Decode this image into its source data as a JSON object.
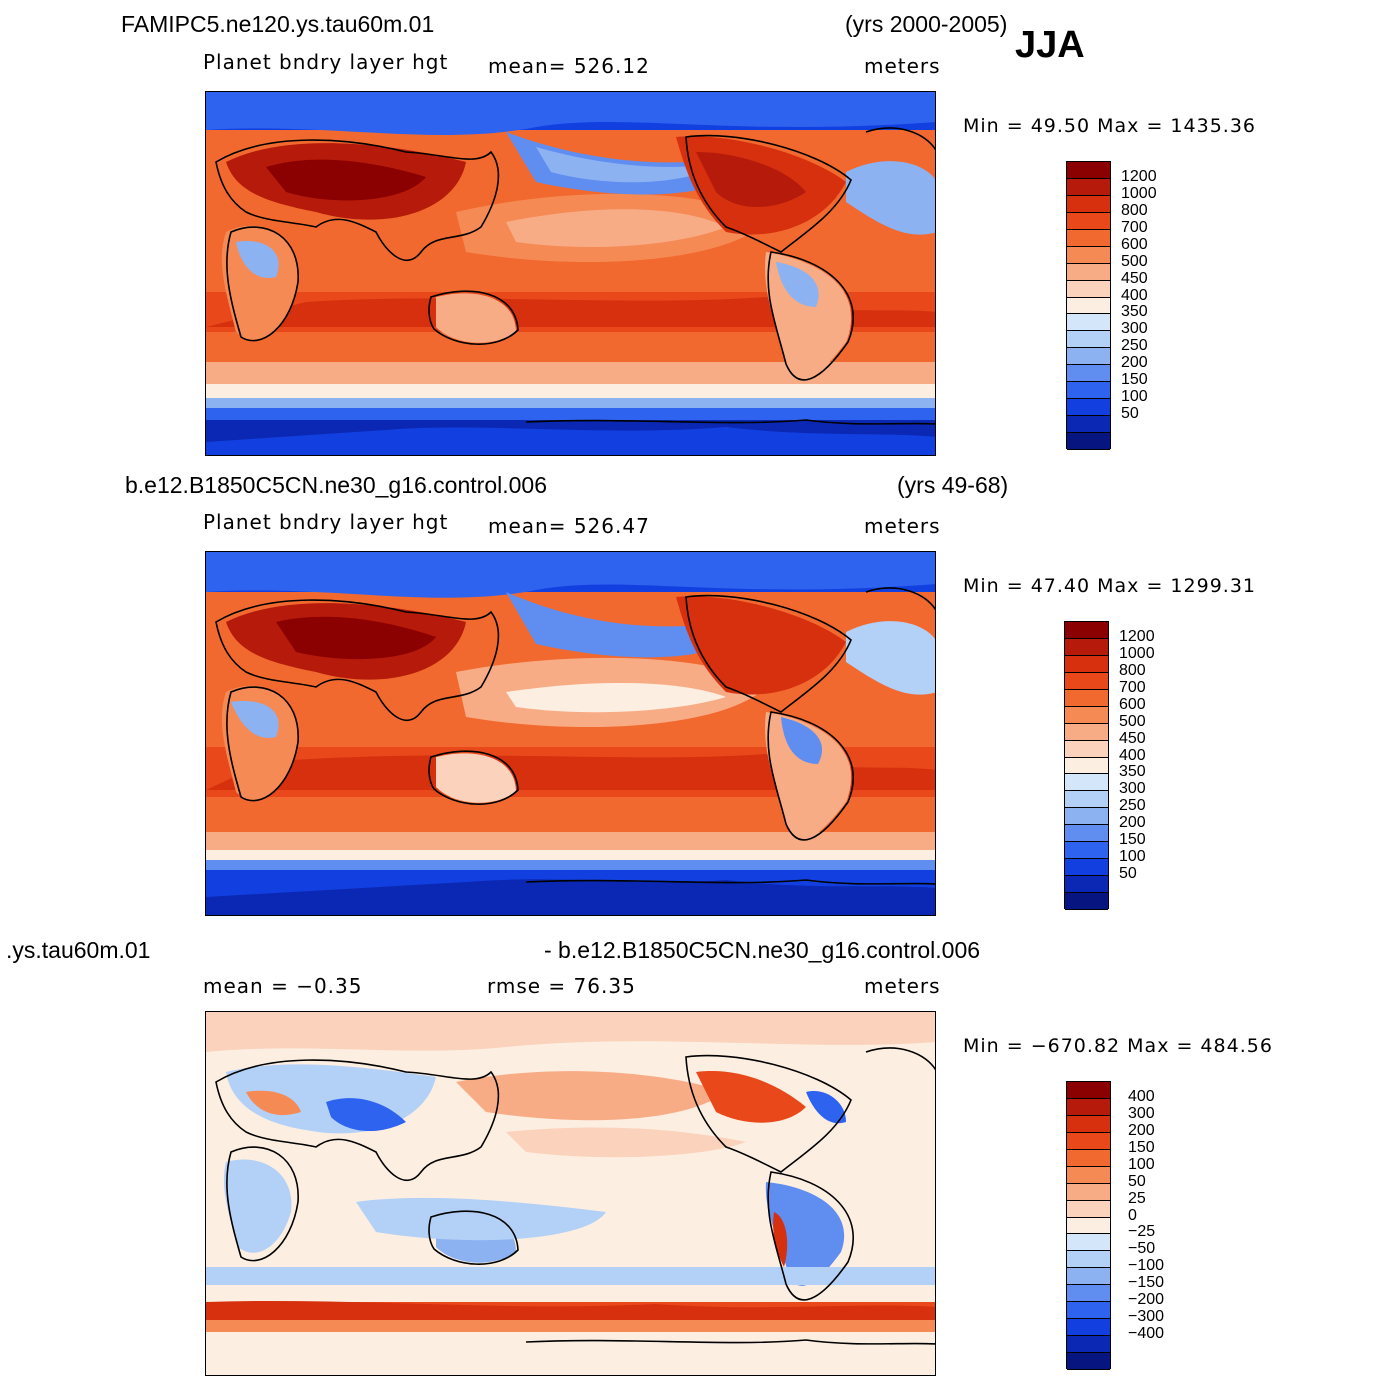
{
  "season": "JJA",
  "panels": [
    {
      "case": "FAMIPC5.ne120.ys.tau60m.01",
      "years": "(yrs 2000-2005)",
      "variable": "Planet bndry layer hgt",
      "stat1": "mean=  526.12",
      "stat2": "",
      "units": "meters",
      "minmax": "Min =   49.50  Max  =  1435.36",
      "kind": "field"
    },
    {
      "case": "b.e12.B1850C5CN.ne30_g16.control.006",
      "years": "(yrs 49-68)",
      "variable": "Planet bndry layer hgt",
      "stat1": "mean=  526.47",
      "stat2": "",
      "units": "meters",
      "minmax": "Min =   47.40  Max  =  1299.31",
      "kind": "field"
    },
    {
      "case": ".ys.tau60m.01",
      "years": "- b.e12.B1850C5CN.ne30_g16.control.006",
      "variable": "mean =   −0.35",
      "stat1": "rmse =   76.35",
      "stat2": "",
      "units": "meters",
      "minmax": "Min = −670.82  Max  =  484.56",
      "kind": "diff"
    }
  ],
  "colorbars": {
    "field": {
      "labels": [
        "1200",
        "1000",
        "800",
        "700",
        "600",
        "500",
        "450",
        "400",
        "350",
        "300",
        "250",
        "200",
        "150",
        "100",
        "50"
      ],
      "colors": [
        "#8b0000",
        "#b51a0a",
        "#d6300f",
        "#e8481a",
        "#f2692f",
        "#f58a55",
        "#f8ac86",
        "#fbd2bb",
        "#fdeee2",
        "#d4e6fa",
        "#b3d0f7",
        "#8db2f2",
        "#5f8ef0",
        "#2e63f0",
        "#1240e0",
        "#0b28b4",
        "#061580"
      ]
    },
    "diff": {
      "labels": [
        "400",
        "300",
        "200",
        "150",
        "100",
        "50",
        "25",
        "0",
        "−25",
        "−50",
        "−100",
        "−150",
        "−200",
        "−300",
        "−400"
      ],
      "colors": [
        "#8b0000",
        "#b51a0a",
        "#d6300f",
        "#e8481a",
        "#f2692f",
        "#f58a55",
        "#f8ac86",
        "#fbd2bb",
        "#fdeee2",
        "#d4e6fa",
        "#b3d0f7",
        "#8db2f2",
        "#5f8ef0",
        "#2e63f0",
        "#1240e0",
        "#0b28b4",
        "#061580"
      ]
    }
  }
}
